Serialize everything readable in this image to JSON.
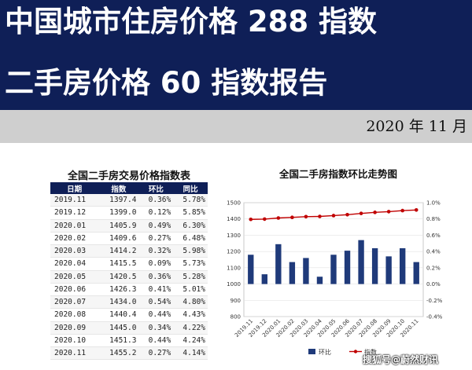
{
  "header": {
    "title_line1": "中国城市住房价格 288 指数",
    "title_line2": "二手房价格 60 指数报告",
    "date": "2020 年 11 月"
  },
  "table": {
    "title": "全国二手房交易价格指数表",
    "columns": [
      "日期",
      "指数",
      "环比",
      "同比"
    ],
    "rows": [
      [
        "2019.11",
        "1397.4",
        "0.36%",
        "5.78%"
      ],
      [
        "2019.12",
        "1399.0",
        "0.12%",
        "5.85%"
      ],
      [
        "2020.01",
        "1405.9",
        "0.49%",
        "6.30%"
      ],
      [
        "2020.02",
        "1409.6",
        "0.27%",
        "6.48%"
      ],
      [
        "2020.03",
        "1414.2",
        "0.32%",
        "5.98%"
      ],
      [
        "2020.04",
        "1415.5",
        "0.09%",
        "5.73%"
      ],
      [
        "2020.05",
        "1420.5",
        "0.36%",
        "5.28%"
      ],
      [
        "2020.06",
        "1426.3",
        "0.41%",
        "5.01%"
      ],
      [
        "2020.07",
        "1434.0",
        "0.54%",
        "4.80%"
      ],
      [
        "2020.08",
        "1440.4",
        "0.44%",
        "4.43%"
      ],
      [
        "2020.09",
        "1445.0",
        "0.34%",
        "4.22%"
      ],
      [
        "2020.10",
        "1451.3",
        "0.44%",
        "4.24%"
      ],
      [
        "2020.11",
        "1455.2",
        "0.27%",
        "4.14%"
      ]
    ]
  },
  "chart_data": {
    "type": "bar",
    "title": "全国二手房指数环比走势图",
    "categories": [
      "2019.11",
      "2019.12",
      "2020.01",
      "2020.02",
      "2020.03",
      "2020.04",
      "2020.05",
      "2020.06",
      "2020.07",
      "2020.08",
      "2020.09",
      "2020.10",
      "2020.11"
    ],
    "series": [
      {
        "name": "环比",
        "type": "bar",
        "axis": "right",
        "color": "#1f3a7a",
        "values": [
          0.36,
          0.12,
          0.49,
          0.27,
          0.32,
          0.09,
          0.36,
          0.41,
          0.54,
          0.44,
          0.34,
          0.44,
          0.27
        ]
      },
      {
        "name": "指数",
        "type": "line",
        "axis": "left",
        "color": "#c00000",
        "values": [
          1397.4,
          1399.0,
          1405.9,
          1409.6,
          1414.2,
          1415.5,
          1420.5,
          1426.3,
          1434.0,
          1440.4,
          1445.0,
          1451.3,
          1455.2
        ]
      }
    ],
    "left_axis": {
      "ylim": [
        800,
        1500
      ],
      "ticks": [
        "800",
        "900",
        "1000",
        "1100",
        "1200",
        "1300",
        "1400",
        "1500"
      ]
    },
    "right_axis": {
      "ylim": [
        -0.4,
        1.0
      ],
      "ticks": [
        "-0.4%",
        "-0.2%",
        "0.0%",
        "0.2%",
        "0.4%",
        "0.6%",
        "0.8%",
        "1.0%"
      ]
    },
    "legend_placement": "bottom"
  },
  "watermark": "搜狐号@蔚然财讯"
}
